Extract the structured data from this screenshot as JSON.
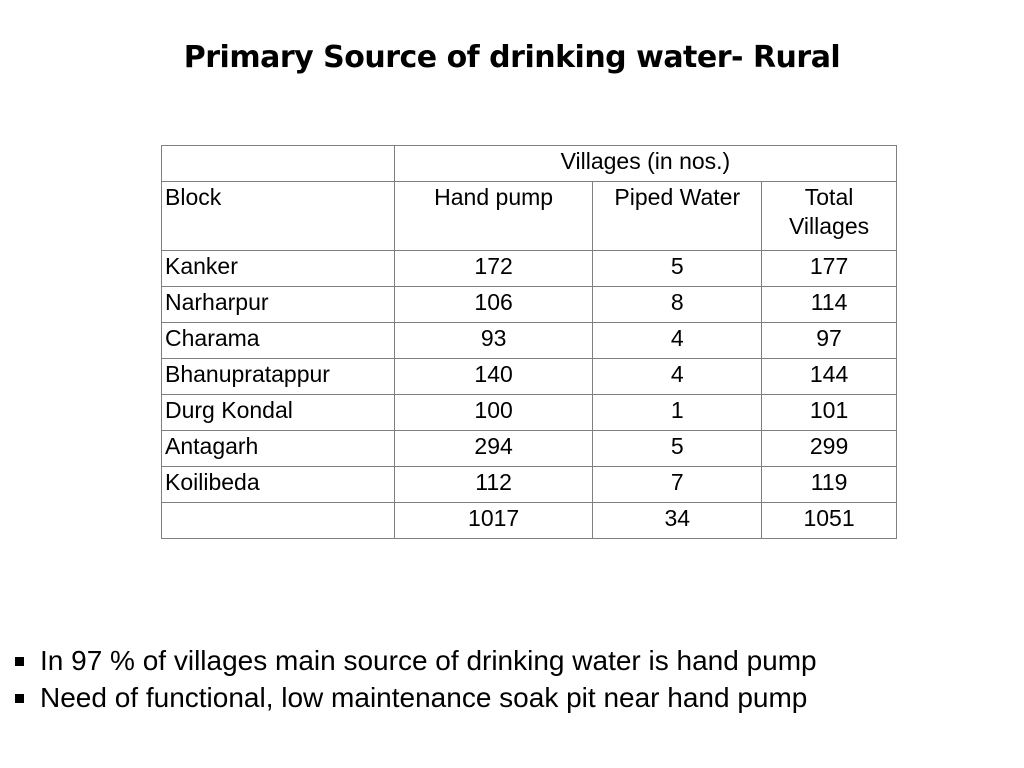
{
  "title": "Primary Source of drinking water- Rural",
  "table": {
    "group_header": "Villages (in nos.)",
    "columns": [
      "Block",
      "Hand pump",
      "Piped Water",
      "Total Villages"
    ],
    "rows": [
      {
        "block": "Kanker",
        "hand_pump": "172",
        "piped_water": "5",
        "total": "177"
      },
      {
        "block": "Narharpur",
        "hand_pump": "106",
        "piped_water": "8",
        "total": "114"
      },
      {
        "block": "Charama",
        "hand_pump": "93",
        "piped_water": "4",
        "total": "97"
      },
      {
        "block": "Bhanupratappur",
        "hand_pump": "140",
        "piped_water": "4",
        "total": "144"
      },
      {
        "block": "Durg Kondal",
        "hand_pump": "100",
        "piped_water": "1",
        "total": "101"
      },
      {
        "block": "Antagarh",
        "hand_pump": "294",
        "piped_water": "5",
        "total": "299"
      },
      {
        "block": "Koilibeda",
        "hand_pump": "112",
        "piped_water": "7",
        "total": "119"
      }
    ],
    "totals": {
      "block": "",
      "hand_pump": "1017",
      "piped_water": "34",
      "total": "1051"
    }
  },
  "bullets": [
    "In 97 % of villages main source of drinking water is hand pump",
    "Need of functional, low maintenance soak pit near hand pump"
  ]
}
